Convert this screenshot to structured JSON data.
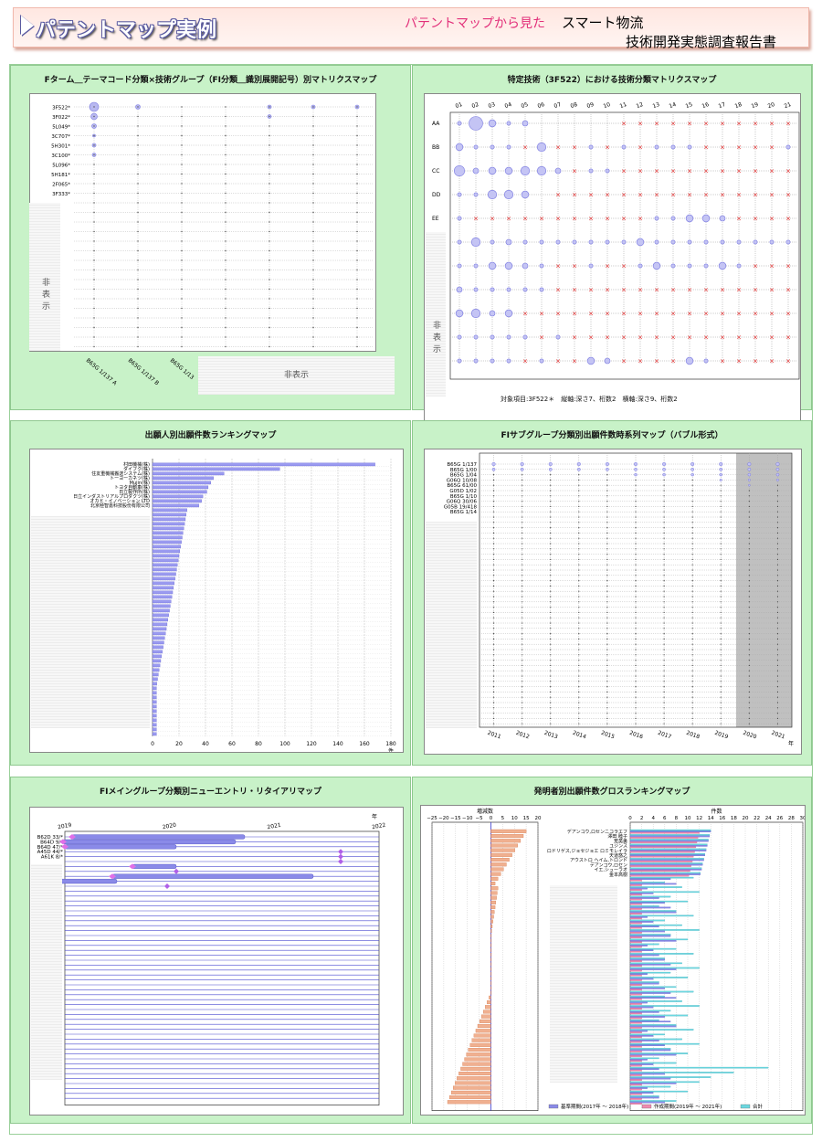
{
  "header": {
    "title": "パテントマップ実例",
    "subtitle": "パテントマップから見た",
    "right_line1": "スマート物流",
    "right_line2": "技術開発実態調査報告書"
  },
  "hidden_label_vertical": "非表示",
  "hidden_label_horizontal": "非表示",
  "colors": {
    "accent": "#7a7ae0",
    "green_bg": "#c8f2c8",
    "red_x": "#e02020",
    "orange_bar": "#e8906a",
    "cyan_bar": "#6cd8e0"
  },
  "panels": {
    "p1": {
      "title": "Fターム＿テーマコード分類×技術グループ（FI分類＿識別展開記号）別マトリクスマップ",
      "row_labels": [
        "3F522*",
        "3F022*",
        "5L049*",
        "3C707*",
        "5H301*",
        "3C100*",
        "5L096*",
        "5H181*",
        "2F065*",
        "3F333*"
      ],
      "col_labels": [
        "B65G 1/137 A",
        "B65G 1/137 B",
        "B65G 1/13"
      ],
      "bubbles": [
        [
          8,
          3,
          0,
          0,
          2,
          2,
          2,
          2
        ],
        [
          5,
          0,
          0,
          0,
          2,
          0,
          0,
          0
        ],
        [
          3,
          0,
          0,
          0,
          0,
          0,
          0,
          0
        ],
        [
          1,
          0,
          0,
          0,
          0,
          0,
          0,
          0
        ],
        [
          2,
          0,
          0,
          0,
          0,
          0,
          0,
          0
        ],
        [
          2,
          0,
          0,
          0,
          0,
          0,
          0,
          0
        ]
      ]
    },
    "p2": {
      "title": "特定技術（3F522）における技術分類マトリクスマップ",
      "col_labels": [
        "01",
        "02",
        "03",
        "04",
        "05",
        "06",
        "07",
        "08",
        "09",
        "10",
        "11",
        "12",
        "13",
        "14",
        "15",
        "16",
        "17",
        "18",
        "19",
        "20",
        "21"
      ],
      "row_labels": [
        "AA",
        "BB",
        "CC",
        "DD",
        "EE"
      ],
      "footnote": "対象項目:3F522＊　縦軸:深さ7、桁数2　横軸:深さ9、桁数2"
    },
    "p3": {
      "title": "出願人別出願件数ランキングマップ",
      "applicants": [
        "村田機械(株)",
        "ダイフク(株)",
        "住友重機械搬送システム(株)",
        "トーヨーカネツ(株)",
        "Mujin(株)",
        "トヨタ自動車(株)",
        "日立製作所(株)",
        "日立インダストリアルプロダクツ(株)",
        "オカド・イノベーション LTD",
        "北京極智嘉科技股份有限公司"
      ],
      "values": [
        168,
        96,
        54,
        46,
        44,
        42,
        41,
        38,
        37,
        35
      ],
      "x_ticks": [
        "0",
        "20",
        "40",
        "60",
        "80",
        "100",
        "120",
        "140",
        "160",
        "180"
      ],
      "x_unit": "件"
    },
    "p4": {
      "title": "FIサブグループ分類別出願件数時系列マップ（バブル形式）",
      "row_labels": [
        "B65G 1/137",
        "B65G 1/00",
        "B65G 1/04",
        "G06Q 10/08",
        "B65G 61/00",
        "G05D 1/02",
        "B65G 1/10",
        "G06Q 30/06",
        "G05B 19/418",
        "B65G 1/14"
      ],
      "years": [
        "2011",
        "2012",
        "2013",
        "2014",
        "2015",
        "2016",
        "2017",
        "2018",
        "2019",
        "2020",
        "2021"
      ],
      "x_unit": "年"
    },
    "p5": {
      "title": "FIメイングループ分類別ニューエントリ・リタイアリマップ",
      "top_years": [
        "2019",
        "2020",
        "2021",
        "2022"
      ],
      "year_unit": "年",
      "row_labels": [
        "B62D 33/*",
        "B64D 9/*",
        "B64D 47/*",
        "A45D 44/*",
        "A61K 8/*"
      ]
    },
    "p6": {
      "title": "発明者別出願件数グロスランキングマップ",
      "left_axis_title": "増減数",
      "left_ticks": [
        "−25",
        "−20",
        "−15",
        "−10",
        "−5",
        "0",
        "5",
        "10",
        "15",
        "20"
      ],
      "right_axis_title": "件数",
      "right_ticks": [
        "0",
        "2",
        "4",
        "6",
        "8",
        "10",
        "12",
        "14",
        "16",
        "18",
        "20",
        "22",
        "24",
        "26",
        "28",
        "30"
      ],
      "inventors": [
        "デアンコウ,ロセンニコラエフ",
        "澤田 睦子",
        "荒英勇",
        "ユジンス",
        "ロドリゲス,ジョセジョエ ロミモレイラ",
        "天道悠之",
        "アウストロ ヘイム,トロンド",
        "デアンコウ,ロセン",
        "イエ,シューラオ",
        "金本高樹"
      ],
      "legend": [
        "基準期間(2017年 〜 2018年)",
        "作成期間(2019年 〜 2021年)",
        "合計"
      ]
    }
  }
}
